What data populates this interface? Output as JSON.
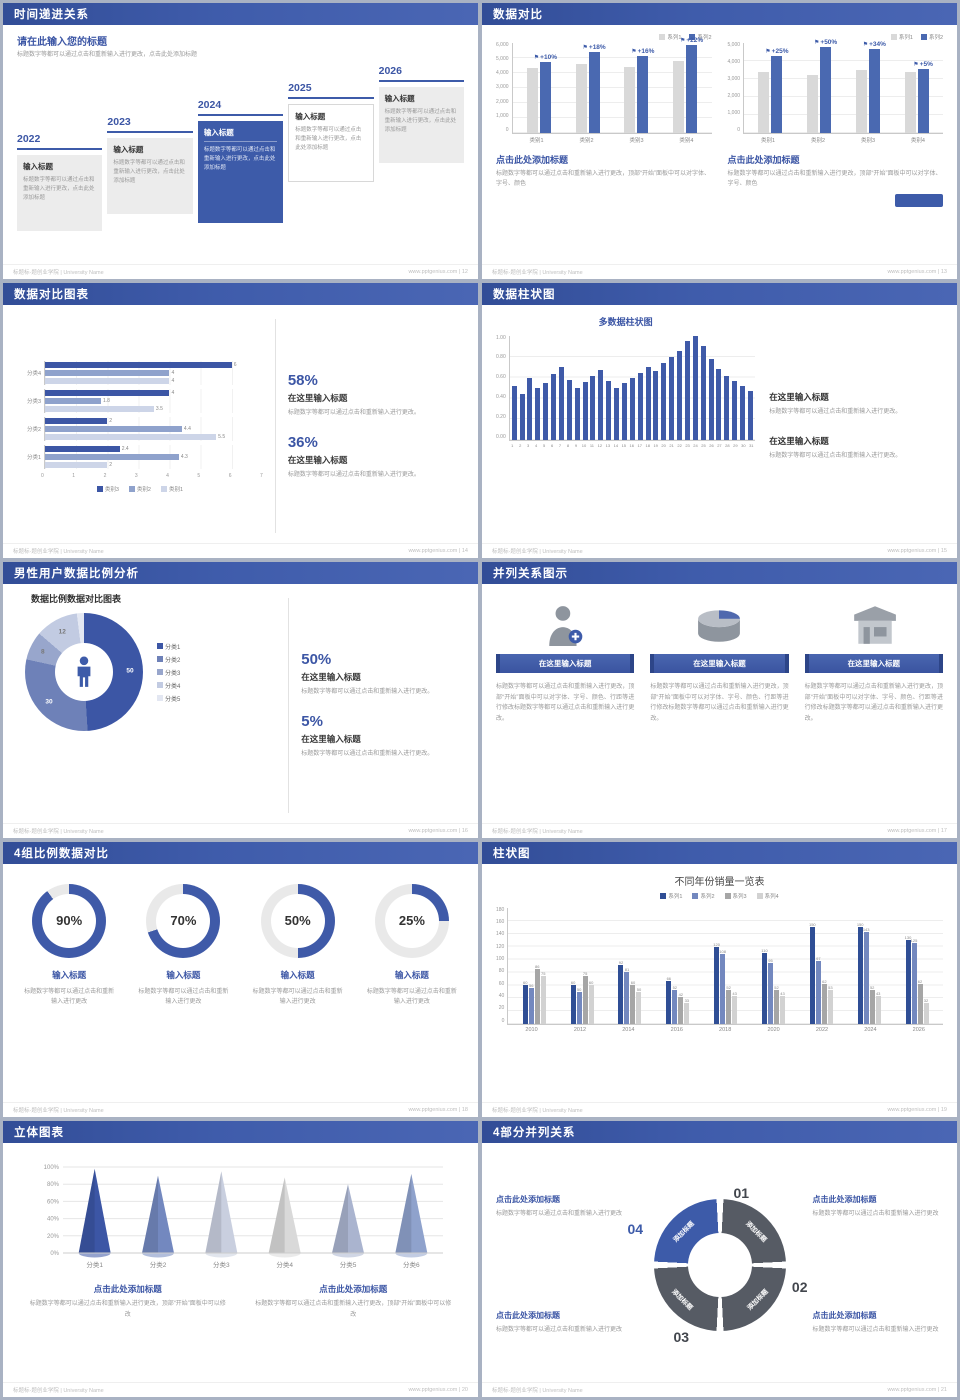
{
  "theme": {
    "header_blue": "#3c56a5",
    "accent_blue": "#3d5ba9",
    "mid_blue": "#7388bf",
    "light_blue": "#c6cfe6",
    "gray_bar": "#d9d9d9",
    "text_gray": "#9a9a9a",
    "page_bg": "#a9b2c3"
  },
  "footer": {
    "left": "标题标-题创业学院 | University Name",
    "site": "www.pptgenius.com"
  },
  "slides": {
    "s12": {
      "header": "时间递进关系",
      "page": "12",
      "heading": "请在此输入您的标题",
      "sub": "标题数字等都可以通过点击和重新输入进行更改，点击此处添加标题",
      "items": [
        {
          "year": "2022",
          "title": "输入标题",
          "body": "标题数字等都可以通过点击和重新输入进行更改，点击此处添加标题"
        },
        {
          "year": "2023",
          "title": "输入标题",
          "body": "标题数字等都可以通过点击和重新输入进行更改，点击此处添加标题"
        },
        {
          "year": "2024",
          "title": "输入标题",
          "body": "标题数字等都可以通过点击和重新输入进行更改，点击此处添加标题"
        },
        {
          "year": "2025",
          "title": "输入标题",
          "body": "标题数字等都可以通过点击和重新输入进行更改，点击此处添加标题"
        },
        {
          "year": "2026",
          "title": "输入标题",
          "body": "标题数字等都可以通过点击和重新输入进行更改，点击此处添加标题"
        }
      ]
    },
    "s13": {
      "header": "数据对比",
      "page": "13",
      "panels": [
        {
          "heading": "点击此处添加标题",
          "body": "标题数字等都可以通过点击和重新输入进行更改，顶部“开始”面板中可以对字体、字号、颜色"
        },
        {
          "heading": "点击此处添加标题",
          "body": "标题数字等都可以通过点击和重新输入进行更改，顶部“开始”面板中可以对字体、字号、颜色"
        }
      ]
    },
    "s14": {
      "header": "数据对比图表",
      "page": "14",
      "stats": [
        {
          "value": "58%",
          "title": "在这里输入标题",
          "body": "标题数字等都可以通过点击和重新输入进行更改。"
        },
        {
          "value": "36%",
          "title": "在这里输入标题",
          "body": "标题数字等都可以通过点击和重新输入进行更改。"
        }
      ]
    },
    "s15": {
      "header": "数据柱状图",
      "page": "15",
      "blocks": [
        {
          "title": "在这里输入标题",
          "body": "标题数字等都可以通过点击和重新输入进行更改。"
        },
        {
          "title": "在这里输入标题",
          "body": "标题数字等都可以通过点击和重新输入进行更改。"
        }
      ]
    },
    "s16": {
      "header": "男性用户数据比例分析",
      "page": "16",
      "stats": [
        {
          "value": "50%",
          "title": "在这里输入标题",
          "body": "标题数字等都可以通过点击和重新输入进行更改。"
        },
        {
          "value": "5%",
          "title": "在这里输入标题",
          "body": "标题数字等都可以通过点击和重新输入进行更改。"
        }
      ]
    },
    "s17": {
      "header": "并列关系图示",
      "page": "17",
      "columns": [
        {
          "icon": "person-plus-icon",
          "button": "在这里输入标题",
          "body": "标题数字等都可以通过点击和重新输入进行更改，顶部“开始”面板中可以对字体、字号、颜色、行距等进行修改标题数字等都可以通过点击和重新输入进行更改。"
        },
        {
          "icon": "cylinder-icon",
          "button": "在这里输入标题",
          "body": "标题数字等都可以通过点击和重新输入进行更改，顶部“开始”面板中可以对字体、字号、颜色、行距等进行修改标题数字等都可以通过点击和重新输入进行更改。"
        },
        {
          "icon": "storefront-icon",
          "button": "在这里输入标题",
          "body": "标题数字等都可以通过点击和重新输入进行更改，顶部“开始”面板中可以对字体、字号、颜色、行距等进行修改标题数字等都可以通过点击和重新输入进行更改。"
        }
      ]
    },
    "s18": {
      "header": "4组比例数据对比",
      "page": "18",
      "items": [
        {
          "title": "输入标题",
          "body": "标题数字等都可以通过点击和重新输入进行更改"
        },
        {
          "title": "输入标题",
          "body": "标题数字等都可以通过点击和重新输入进行更改"
        },
        {
          "title": "输入标题",
          "body": "标题数字等都可以通过点击和重新输入进行更改"
        },
        {
          "title": "输入标题",
          "body": "标题数字等都可以通过点击和重新输入进行更改"
        }
      ]
    },
    "s19": {
      "header": "柱状图",
      "page": "19"
    },
    "s20": {
      "header": "立体图表",
      "page": "20",
      "blocks": [
        {
          "title": "点击此处添加标题",
          "body": "标题数字等都可以通过点击和重新输入进行更改，顶部“开始”面板中可以修改"
        },
        {
          "title": "点击此处添加标题",
          "body": "标题数字等都可以通过点击和重新输入进行更改，顶部“开始”面板中可以修改"
        }
      ]
    },
    "s21": {
      "header": "4部分并列关系",
      "page": "21",
      "blocks": [
        {
          "title": "点击此处添加标题",
          "body": "标题数字等都可以通过点击和重新输入进行更改"
        },
        {
          "title": "点击此处添加标题",
          "body": "标题数字等都可以通过点击和重新输入进行更改"
        },
        {
          "title": "点击此处添加标题",
          "body": "标题数字等都可以通过点击和重新输入进行更改"
        },
        {
          "title": "点击此处添加标题",
          "body": "标题数字等都可以通过点击和重新输入进行更改"
        }
      ]
    }
  },
  "chart_data": [
    {
      "id": "s13-left",
      "type": "bar",
      "categories": [
        "类别1",
        "类别2",
        "类别3",
        "类别4"
      ],
      "series": [
        {
          "name": "系列1",
          "color": "#d9d9d9",
          "values": [
            4300,
            4600,
            4400,
            4800
          ]
        },
        {
          "name": "系列2",
          "color": "#4a69b1",
          "values": [
            4730,
            5430,
            5100,
            5860
          ]
        }
      ],
      "annotations": [
        "+10%",
        "+18%",
        "+16%",
        "+22%"
      ],
      "ylim": [
        0,
        6000
      ],
      "yticks": [
        "6,000",
        "5,000",
        "4,000",
        "3,000",
        "2,000",
        "1,000",
        "0"
      ],
      "legend_position": "top-right"
    },
    {
      "id": "s13-right",
      "type": "bar",
      "categories": [
        "类别1",
        "类别2",
        "类别3",
        "类别4"
      ],
      "series": [
        {
          "name": "系列1",
          "color": "#d9d9d9",
          "values": [
            3400,
            3200,
            3500,
            3400
          ]
        },
        {
          "name": "系列2",
          "color": "#4a69b1",
          "values": [
            4250,
            4800,
            4690,
            3570
          ]
        }
      ],
      "annotations": [
        "+25%",
        "+50%",
        "+34%",
        "+5%"
      ],
      "ylim": [
        0,
        5000
      ],
      "yticks": [
        "5,000",
        "4,000",
        "3,000",
        "2,000",
        "1,000",
        "0"
      ],
      "legend_position": "top-right"
    },
    {
      "id": "s14",
      "type": "bar",
      "orientation": "horizontal",
      "categories": [
        "分类4",
        "分类3",
        "分类2",
        "分类1"
      ],
      "series": [
        {
          "name": "类别3",
          "color": "#3c56a5",
          "values": [
            6,
            4,
            2,
            2.4
          ]
        },
        {
          "name": "类别2",
          "color": "#8fa2cc",
          "values": [
            4,
            1.8,
            4.4,
            4.3
          ]
        },
        {
          "name": "类别1",
          "color": "#cdd5e8",
          "values": [
            4,
            3.5,
            5.5,
            2
          ]
        }
      ],
      "xlim": [
        0,
        7
      ],
      "xticks": [
        0,
        1,
        2,
        3,
        4,
        5,
        6,
        7
      ],
      "legend_position": "bottom"
    },
    {
      "id": "s15",
      "type": "bar",
      "title": "多数据柱状图",
      "color": "#3f5aa8",
      "x": [
        1,
        2,
        3,
        4,
        5,
        6,
        7,
        8,
        9,
        10,
        11,
        12,
        13,
        14,
        15,
        16,
        17,
        18,
        19,
        20,
        21,
        22,
        23,
        24,
        25,
        26,
        27,
        28,
        29,
        30,
        31
      ],
      "values": [
        0.52,
        0.44,
        0.6,
        0.5,
        0.55,
        0.63,
        0.7,
        0.58,
        0.5,
        0.56,
        0.62,
        0.67,
        0.57,
        0.5,
        0.55,
        0.6,
        0.64,
        0.7,
        0.66,
        0.74,
        0.8,
        0.86,
        0.95,
        1.0,
        0.9,
        0.78,
        0.68,
        0.62,
        0.57,
        0.52,
        0.47
      ],
      "ylim": [
        0,
        1
      ],
      "yticks": [
        "1.00",
        "0.80",
        "0.60",
        "0.40",
        "0.20",
        "0.00"
      ]
    },
    {
      "id": "s16",
      "type": "pie",
      "donut": true,
      "title": "数据比例数据对比图表",
      "labels": [
        "分类1",
        "分类2",
        "分类3",
        "分类4",
        "分类5"
      ],
      "values": [
        50,
        30,
        8,
        12,
        2
      ],
      "colors": [
        "#3c56a5",
        "#6e81b8",
        "#98a6cc",
        "#c2cbe2",
        "#e3e7f2"
      ],
      "center_icon": "male-figure-icon",
      "legend_position": "right"
    },
    {
      "id": "s18",
      "type": "pie",
      "variant": "progress-rings",
      "values": [
        90,
        70,
        50,
        25
      ],
      "labels": [
        "90%",
        "70%",
        "50%",
        "25%"
      ],
      "color": "#3f5aa8"
    },
    {
      "id": "s19",
      "type": "bar",
      "title": "不同年份销量一览表",
      "categories": [
        "2010",
        "2012",
        "2014",
        "2016",
        "2018",
        "2020",
        "2022",
        "2024",
        "2026"
      ],
      "series": [
        {
          "name": "系列1",
          "color": "#2f4e95",
          "values": [
            60,
            60,
            92,
            66,
            120,
            110,
            150,
            150,
            130
          ]
        },
        {
          "name": "系列2",
          "color": "#7388bf",
          "values": [
            56,
            50,
            81,
            52,
            108,
            95,
            97,
            143,
            125
          ]
        },
        {
          "name": "系列3",
          "color": "#a6a6a6",
          "values": [
            86,
            75,
            60,
            42,
            52,
            52,
            62,
            52,
            62
          ]
        },
        {
          "name": "系列4",
          "color": "#d2d2d2",
          "values": [
            75,
            60,
            50,
            33,
            43,
            43,
            53,
            43,
            32
          ]
        }
      ],
      "ylim": [
        0,
        180
      ],
      "yticks": [
        "180",
        "160",
        "140",
        "120",
        "100",
        "80",
        "60",
        "40",
        "20",
        "0"
      ],
      "gap": 1,
      "legend_position": "top"
    },
    {
      "id": "s20",
      "type": "bar",
      "variant": "cone-3d",
      "categories": [
        "分类1",
        "分类2",
        "分类3",
        "分类4",
        "分类5",
        "分类6"
      ],
      "values": [
        98,
        90,
        95,
        88,
        80,
        92
      ],
      "colors": [
        "#3c56a5",
        "#7388bf",
        "#c9cfdf",
        "#d9d9d9",
        "#aab4cf",
        "#8fa2cc"
      ],
      "yticks": [
        "0%",
        "20%",
        "40%",
        "60%",
        "80%",
        "100%"
      ]
    },
    {
      "id": "s21",
      "type": "pie",
      "variant": "segmented-ring",
      "segments": 4,
      "numbers": [
        "01",
        "02",
        "03",
        "04"
      ],
      "labels": [
        "添加标题",
        "添加标题",
        "添加标题",
        "添加标题"
      ],
      "colors": [
        "#565b64",
        "#565b64",
        "#565b64",
        "#3d5ba9"
      ]
    }
  ]
}
